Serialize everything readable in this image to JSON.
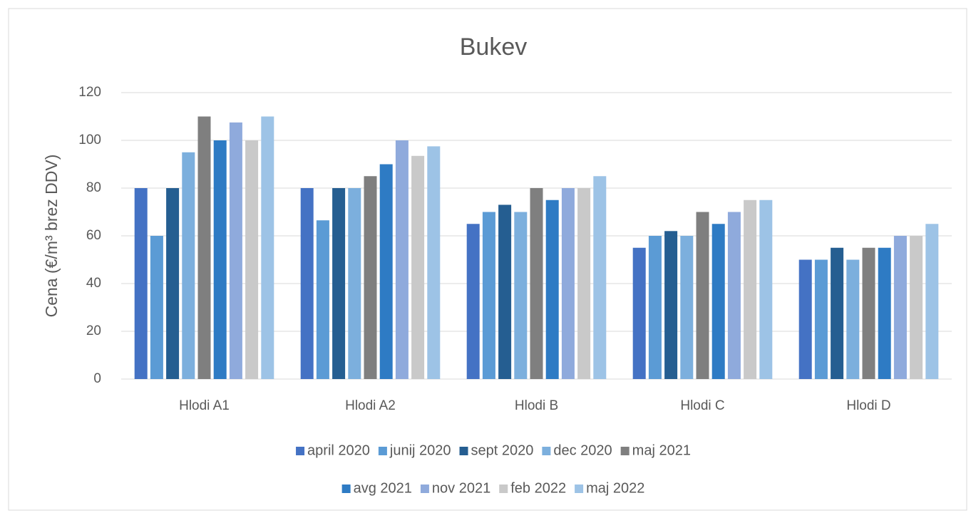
{
  "chart_data": {
    "type": "bar",
    "title": "Bukev",
    "y_label": "Cena (€/m³ brez DDV)",
    "categories": [
      "Hlodi A1",
      "Hlodi A2",
      "Hlodi B",
      "Hlodi C",
      "Hlodi D"
    ],
    "series": [
      {
        "name": "april 2020",
        "color": "#4472c4",
        "values": [
          80,
          80,
          65,
          55,
          50
        ]
      },
      {
        "name": "junij 2020",
        "color": "#5b9bd5",
        "values": [
          60,
          66.5,
          70,
          60,
          50
        ]
      },
      {
        "name": "sept 2020",
        "color": "#255e91",
        "values": [
          80,
          80,
          73,
          62,
          55
        ]
      },
      {
        "name": "dec 2020",
        "color": "#7cafdd",
        "values": [
          95,
          80,
          70,
          60,
          50
        ]
      },
      {
        "name": "maj 2021",
        "color": "#7f7f7f",
        "values": [
          110,
          85,
          80,
          70,
          55
        ]
      },
      {
        "name": "avg 2021",
        "color": "#2e7bc4",
        "values": [
          100,
          90,
          75,
          65,
          55
        ]
      },
      {
        "name": "nov 2021",
        "color": "#8faadc",
        "values": [
          107.5,
          100,
          80,
          70,
          60
        ]
      },
      {
        "name": "feb 2022",
        "color": "#c9c9c9",
        "values": [
          100,
          93.5,
          80,
          75,
          60
        ]
      },
      {
        "name": "maj 2022",
        "color": "#9dc3e6",
        "values": [
          110,
          97.5,
          85,
          75,
          65
        ]
      }
    ],
    "ylim": [
      0,
      120
    ],
    "yticks": [
      0,
      20,
      40,
      60,
      80,
      100,
      120
    ],
    "grid": true,
    "legend": "bottom"
  }
}
